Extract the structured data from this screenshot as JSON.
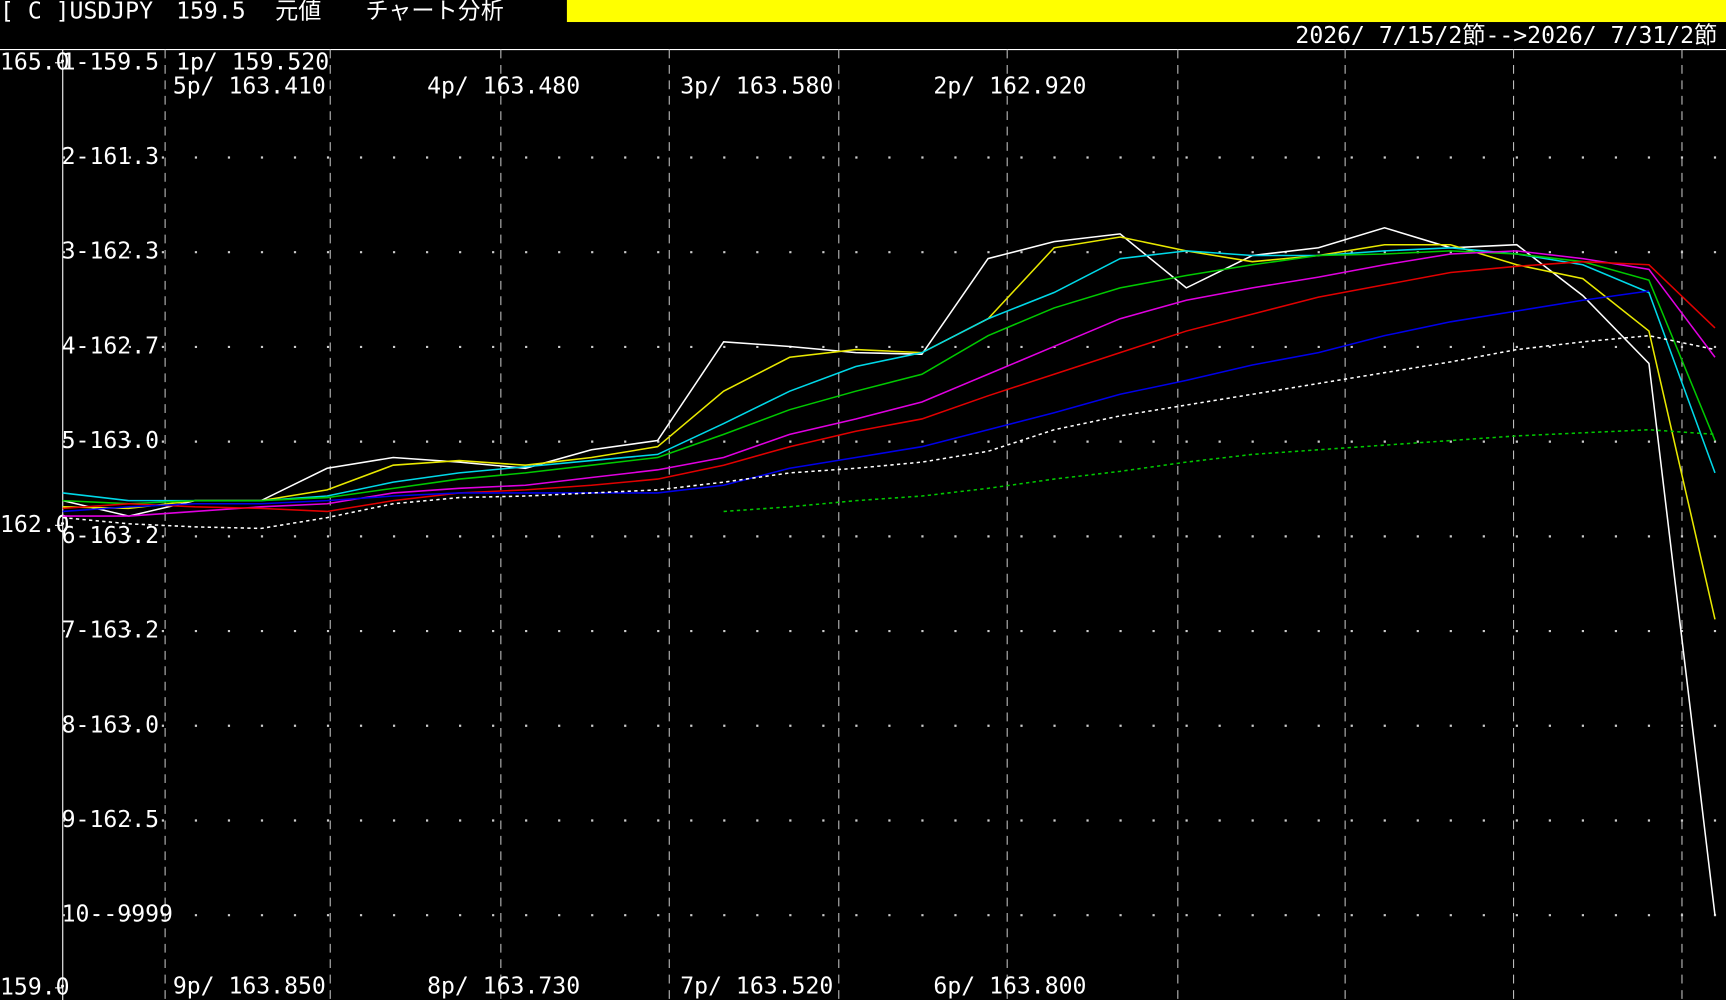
{
  "header": {
    "symbol": "[ C ]USDJPY",
    "price": "159.5",
    "mode": "元値",
    "title": "チャート分析",
    "range": "2026/ 7/15/2節-->2026/ 7/31/2節"
  },
  "rows": [
    "1-159.5",
    "2-161.3",
    "3-162.3",
    "4-162.7",
    "5-163.0",
    "6-163.2",
    "7-163.2",
    "8-163.0",
    "9-162.5",
    "10--9999"
  ],
  "price_labels": [
    "1p/ 159.520",
    "5p/ 163.410",
    "4p/ 163.480",
    "3p/ 163.580",
    "2p/ 162.920",
    "9p/ 163.850",
    "8p/ 163.730",
    "7p/ 163.520",
    "6p/ 163.800"
  ],
  "chart_data": {
    "type": "line",
    "ylim": [
      159,
      165
    ],
    "yticks": [
      {
        "value": 159,
        "label": "159.0"
      },
      {
        "value": 162,
        "label": "162.0"
      },
      {
        "value": 165,
        "label": "165.0"
      }
    ],
    "categories": [
      null,
      null,
      null,
      null,
      null,
      null,
      null,
      null,
      null,
      null,
      null,
      null,
      null,
      null,
      null,
      null,
      null,
      null,
      null,
      null,
      null,
      null,
      null,
      null,
      null,
      null
    ],
    "series": [
      {
        "color": "#ffffff",
        "style": "solid",
        "values": [
          162.16,
          162.06,
          162.16,
          162.16,
          162.37,
          162.44,
          162.41,
          162.37,
          162.49,
          162.55,
          163.19,
          163.16,
          163.12,
          163.11,
          163.73,
          163.84,
          163.89,
          163.54,
          163.75,
          163.8,
          163.93,
          163.8,
          163.82,
          163.49,
          163.05,
          159.47
        ]
      },
      {
        "color": "#e8e800",
        "style": "solid",
        "values": [
          162.12,
          162.11,
          162.16,
          162.16,
          162.23,
          162.39,
          162.42,
          162.39,
          162.44,
          162.51,
          162.87,
          163.09,
          163.14,
          163.12,
          163.34,
          163.8,
          163.87,
          163.78,
          163.71,
          163.75,
          163.82,
          163.82,
          163.69,
          163.6,
          163.26,
          161.39
        ]
      },
      {
        "color": "#00d8e8",
        "style": "solid",
        "values": [
          162.21,
          162.16,
          162.16,
          162.16,
          162.19,
          162.28,
          162.34,
          162.38,
          162.42,
          162.46,
          162.66,
          162.87,
          163.03,
          163.12,
          163.34,
          163.51,
          163.73,
          163.78,
          163.75,
          163.75,
          163.78,
          163.8,
          163.76,
          163.69,
          163.51,
          162.34
        ]
      },
      {
        "color": "#00c800",
        "style": "solid",
        "values": [
          162.16,
          162.14,
          162.16,
          162.16,
          162.18,
          162.24,
          162.3,
          162.34,
          162.39,
          162.44,
          162.59,
          162.75,
          162.87,
          162.98,
          163.23,
          163.41,
          163.54,
          163.62,
          163.69,
          163.75,
          163.76,
          163.78,
          163.76,
          163.71,
          163.59,
          162.55
        ]
      },
      {
        "color": "#e000e0",
        "style": "solid",
        "values": [
          162.06,
          162.06,
          162.09,
          162.12,
          162.14,
          162.21,
          162.24,
          162.26,
          162.31,
          162.36,
          162.44,
          162.59,
          162.69,
          162.8,
          162.98,
          163.16,
          163.34,
          163.46,
          163.54,
          163.61,
          163.69,
          163.76,
          163.78,
          163.73,
          163.66,
          163.09
        ]
      },
      {
        "color": "#e00000",
        "style": "solid",
        "values": [
          162.11,
          162.14,
          162.12,
          162.11,
          162.09,
          162.16,
          162.21,
          162.23,
          162.26,
          162.3,
          162.39,
          162.51,
          162.61,
          162.69,
          162.84,
          162.98,
          163.12,
          163.26,
          163.37,
          163.48,
          163.56,
          163.64,
          163.68,
          163.71,
          163.69,
          163.28
        ]
      },
      {
        "color": "#0000e8",
        "style": "solid",
        "values": [
          162.09,
          162.12,
          162.14,
          162.14,
          162.16,
          162.19,
          162.21,
          162.21,
          162.21,
          162.21,
          162.26,
          162.37,
          162.44,
          162.51,
          162.62,
          162.73,
          162.85,
          162.94,
          163.04,
          163.12,
          163.23,
          163.32,
          163.39,
          163.46,
          163.52,
          null
        ]
      },
      {
        "color": "#ffffff",
        "style": "dotted",
        "values": [
          162.05,
          162.01,
          161.99,
          161.98,
          162.05,
          162.14,
          162.18,
          162.19,
          162.21,
          162.23,
          162.28,
          162.34,
          162.37,
          162.41,
          162.48,
          162.62,
          162.71,
          162.78,
          162.85,
          162.92,
          162.99,
          163.06,
          163.14,
          163.19,
          163.23,
          163.14
        ]
      },
      {
        "color": "#00c800",
        "style": "dotted",
        "values": [
          null,
          null,
          null,
          null,
          null,
          null,
          null,
          null,
          null,
          null,
          162.09,
          162.12,
          162.16,
          162.19,
          162.24,
          162.3,
          162.35,
          162.41,
          162.46,
          162.49,
          162.52,
          162.55,
          162.58,
          162.6,
          162.62,
          162.59
        ]
      }
    ]
  }
}
